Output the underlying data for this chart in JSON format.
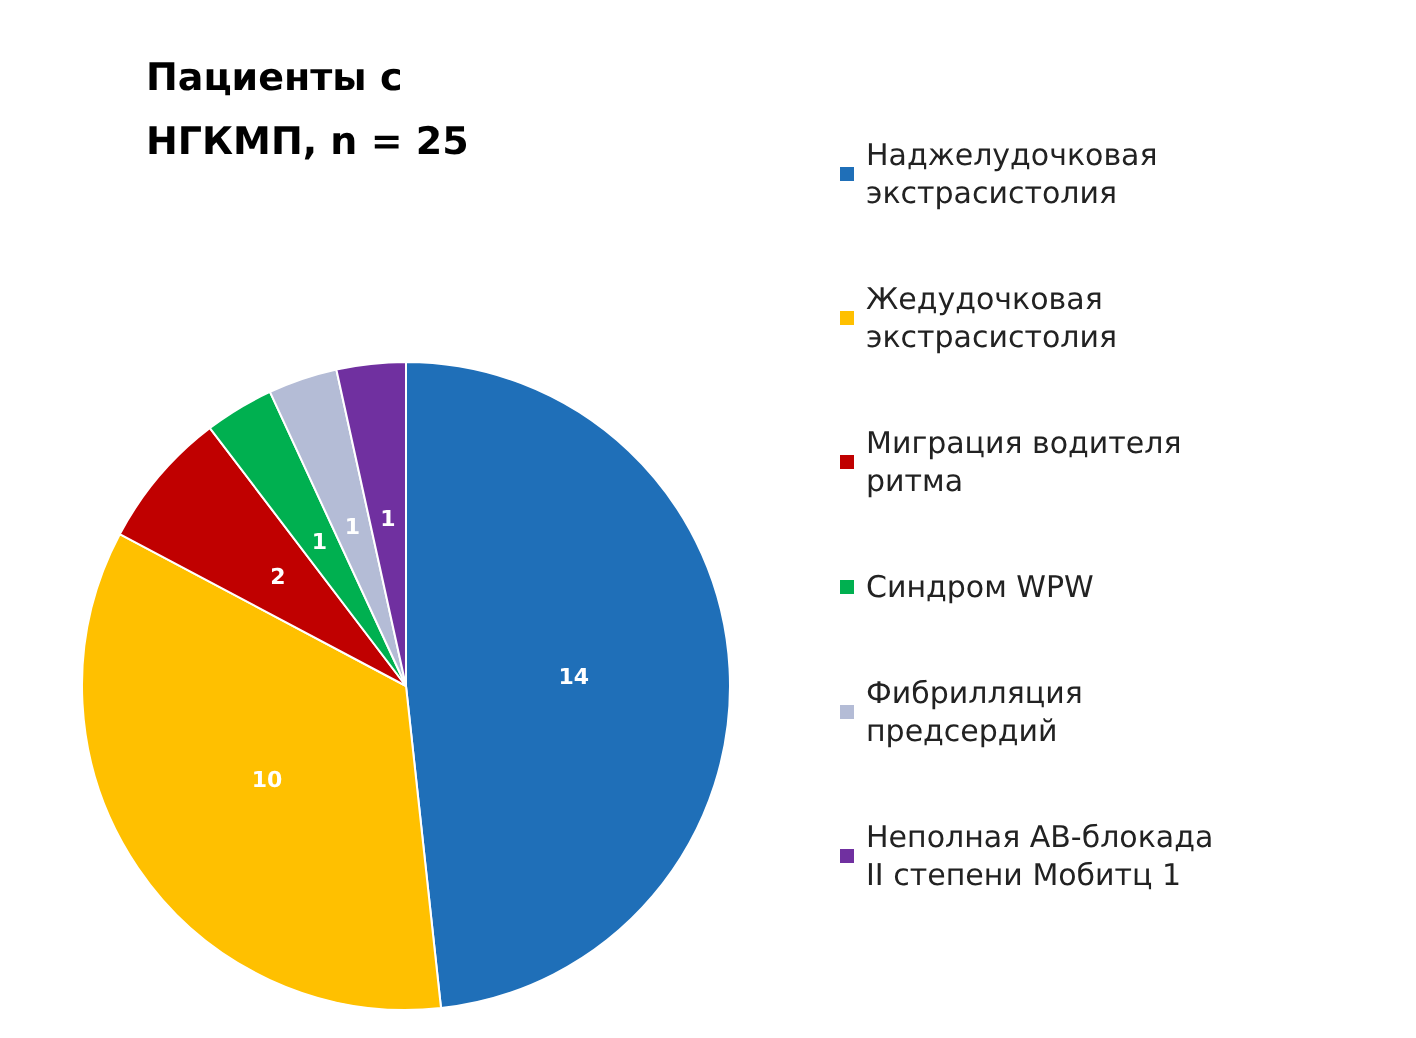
{
  "chart_data": {
    "type": "pie",
    "title": "Пациенты с НГКМП, n = 25",
    "categories": [
      "Наджелудочковая экстрасистолия",
      "Жедудочковая экстрасистолия",
      "Миграция водителя ритма",
      "Синдром WPW",
      "Фибрилляция предсердий",
      "Неполная АВ-блокада II степени Мобитц 1"
    ],
    "values": [
      14,
      10,
      2,
      1,
      1,
      1
    ],
    "colors": [
      "#1f6fb8",
      "#ffc000",
      "#c00000",
      "#00b050",
      "#b4bcd6",
      "#7030a0"
    ],
    "data_labels": true,
    "legend": "right"
  }
}
